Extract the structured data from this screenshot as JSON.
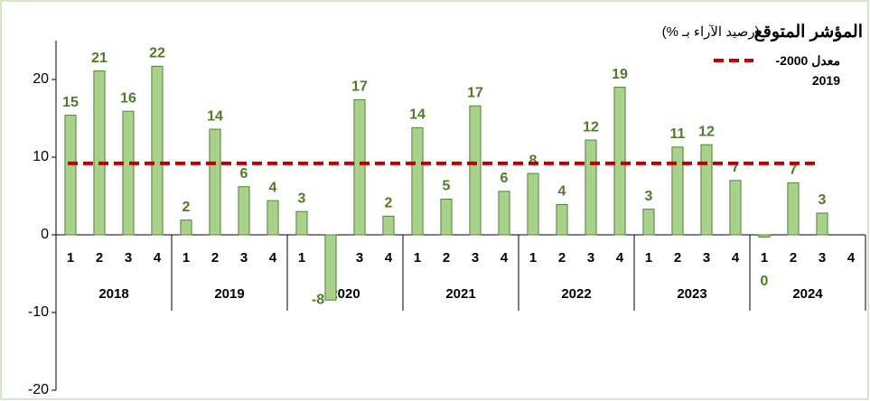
{
  "chart_data": {
    "type": "bar",
    "title": "المؤشر المتوقع",
    "subtitle": "(رصيد الآراء بـ %)",
    "categories": [
      "1",
      "2",
      "3",
      "4",
      "1",
      "2",
      "3",
      "4",
      "1",
      "2",
      "3",
      "4",
      "1",
      "2",
      "3",
      "4",
      "1",
      "2",
      "3",
      "4",
      "1",
      "2",
      "3",
      "4",
      "1",
      "2",
      "3",
      "4"
    ],
    "groups": [
      "2018",
      "2019",
      "2020",
      "2021",
      "2022",
      "2023",
      "2024"
    ],
    "values": [
      15.4,
      21.1,
      15.9,
      21.7,
      1.9,
      13.6,
      6.2,
      4.4,
      3.0,
      -8.4,
      17.4,
      2.4,
      13.8,
      4.6,
      16.6,
      5.6,
      7.9,
      3.9,
      12.2,
      19.0,
      3.3,
      11.3,
      11.6,
      7.0,
      -0.3,
      6.7,
      2.8,
      null
    ],
    "value_labels": [
      "15",
      "21",
      "16",
      "22",
      "2",
      "14",
      "6",
      "4",
      "3",
      "-8",
      "17",
      "2",
      "14",
      "5",
      "17",
      "6",
      "8",
      "4",
      "12",
      "19",
      "3",
      "11",
      "12",
      "7",
      "0",
      "7",
      "3",
      null
    ],
    "color": "#a9d18e",
    "reference_line": {
      "name": "معدل 2000-2019",
      "value": 9.2,
      "color": "#c00000"
    },
    "ylim": [
      -20,
      25
    ],
    "yticks": [
      -20,
      -10,
      0,
      10,
      20
    ]
  }
}
